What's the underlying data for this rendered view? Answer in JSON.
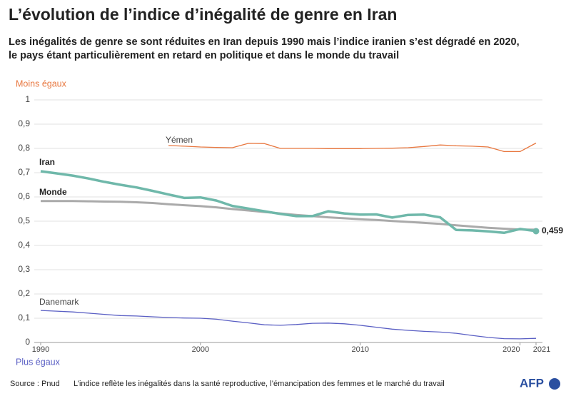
{
  "chart_data": {
    "type": "line",
    "title": "L’évolution de l’indice d’inégalité de genre en Iran",
    "subtitle": [
      "Les inégalités de genre se sont réduites en Iran depuis 1990 mais l’indice iranien s’est dégradé en 2020,",
      "le pays étant particulièrement en retard en politique et dans le monde du travail"
    ],
    "annotations": {
      "top": "Moins égaux",
      "bottom": "Plus égaux"
    },
    "source": "Source : Pnud",
    "note": "L’indice reflète les inégalités dans la santé reproductive, l’émancipation des femmes et le marché du travail",
    "credit": "AFP",
    "x": [
      1990,
      1991,
      1992,
      1993,
      1994,
      1995,
      1996,
      1997,
      1998,
      1999,
      2000,
      2001,
      2002,
      2003,
      2004,
      2005,
      2006,
      2007,
      2008,
      2009,
      2010,
      2011,
      2012,
      2013,
      2014,
      2015,
      2016,
      2017,
      2018,
      2019,
      2020,
      2021
    ],
    "xlim": [
      1990,
      2021
    ],
    "xticks": [
      1990,
      2000,
      2010,
      2020,
      2021
    ],
    "ylim": [
      0,
      1
    ],
    "yticks": [
      0,
      {
        "value": 0.1,
        "label": "0,1"
      },
      {
        "value": 0.2,
        "label": "0,2"
      },
      {
        "value": 0.3,
        "label": "0,3"
      },
      {
        "value": 0.4,
        "label": "0,4"
      },
      {
        "value": 0.5,
        "label": "0,5"
      },
      {
        "value": 0.6,
        "label": "0,6"
      },
      {
        "value": 0.7,
        "label": "0,7"
      },
      {
        "value": 0.8,
        "label": "0,8"
      },
      {
        "value": 0.9,
        "label": "0,9"
      },
      1
    ],
    "grid": true,
    "series": [
      {
        "name": "Yémen",
        "color": "#e8773f",
        "width": 1.3,
        "values": [
          null,
          null,
          null,
          null,
          null,
          null,
          null,
          null,
          0.812,
          0.809,
          0.806,
          0.804,
          0.803,
          0.821,
          0.82,
          0.8,
          0.8,
          0.8,
          0.799,
          0.799,
          0.799,
          0.8,
          0.801,
          0.803,
          0.808,
          0.814,
          0.811,
          0.809,
          0.806,
          0.787,
          0.787,
          0.822
        ]
      },
      {
        "name": "Danemark",
        "color": "#5a5fc4",
        "width": 1.3,
        "values": [
          0.132,
          0.129,
          0.126,
          0.121,
          0.116,
          0.111,
          0.109,
          0.106,
          0.103,
          0.101,
          0.1,
          0.096,
          0.088,
          0.081,
          0.073,
          0.071,
          0.074,
          0.079,
          0.08,
          0.077,
          0.071,
          0.063,
          0.055,
          0.05,
          0.046,
          0.043,
          0.038,
          0.029,
          0.021,
          0.016,
          0.015,
          0.017
        ]
      },
      {
        "name": "Monde",
        "color": "#aaaaaa",
        "width": 3,
        "values": [
          0.583,
          0.583,
          0.583,
          0.582,
          0.581,
          0.58,
          0.578,
          0.575,
          0.57,
          0.566,
          0.562,
          0.557,
          0.55,
          0.544,
          0.538,
          0.532,
          0.526,
          0.521,
          0.516,
          0.512,
          0.508,
          0.505,
          0.501,
          0.497,
          0.493,
          0.489,
          0.483,
          0.478,
          0.473,
          0.469,
          0.466,
          0.465
        ]
      },
      {
        "name": "Iran",
        "color": "#6fb8aa",
        "width": 3.5,
        "values": [
          0.706,
          0.697,
          0.688,
          0.676,
          0.662,
          0.65,
          0.639,
          0.625,
          0.61,
          0.596,
          0.598,
          0.585,
          0.563,
          0.552,
          0.541,
          0.53,
          0.521,
          0.521,
          0.541,
          0.532,
          0.527,
          0.528,
          0.515,
          0.526,
          0.527,
          0.516,
          0.464,
          0.462,
          0.458,
          0.452,
          0.468,
          0.459
        ],
        "value_labels": [
          null,
          null,
          null,
          null,
          null,
          null,
          null,
          null,
          null,
          null,
          null,
          null,
          null,
          null,
          null,
          null,
          null,
          null,
          null,
          null,
          null,
          null,
          null,
          null,
          null,
          null,
          null,
          null,
          null,
          null,
          null,
          "0,459"
        ]
      }
    ]
  }
}
